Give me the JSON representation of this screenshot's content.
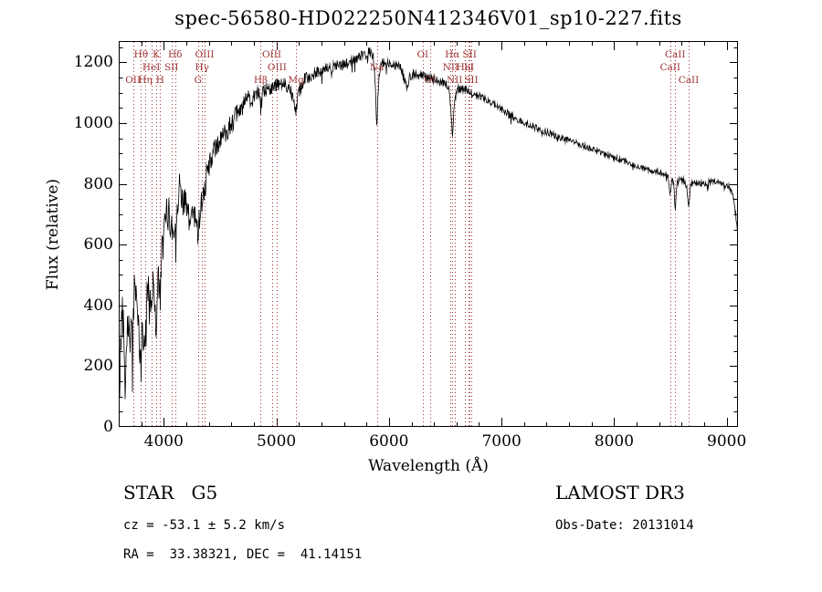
{
  "title": "spec-56580-HD022250N412346V01_sp10-227.fits",
  "footer": {
    "object_type": "STAR   G5",
    "survey": "LAMOST DR3",
    "cz": "cz = -53.1 ± 5.2 km/s",
    "obs_date": "Obs-Date: 20131014",
    "coords": "RA =  33.38321, DEC =  41.14151"
  },
  "chart_data": {
    "type": "line",
    "title": "spec-56580-HD022250N412346V01_sp10-227.fits",
    "xlabel": "Wavelength (Å)",
    "ylabel": "Flux (relative)",
    "xlim": [
      3600,
      9100
    ],
    "ylim": [
      0,
      1270
    ],
    "x_major_ticks": [
      4000,
      5000,
      6000,
      7000,
      8000,
      9000
    ],
    "x_minor_step": 200,
    "y_major_ticks": [
      0,
      200,
      400,
      600,
      800,
      1000,
      1200
    ],
    "y_minor_step": 50,
    "grid": false,
    "legend": "none",
    "spectrum_color": "#000000",
    "marker_line_color": "#a03434",
    "noise_seed": 42,
    "series": [
      {
        "name": "flux_envelope",
        "points": [
          [
            3600,
            60
          ],
          [
            3615,
            220
          ],
          [
            3630,
            420
          ],
          [
            3645,
            300
          ],
          [
            3660,
            180
          ],
          [
            3675,
            360
          ],
          [
            3690,
            330
          ],
          [
            3705,
            300
          ],
          [
            3720,
            270
          ],
          [
            3735,
            430
          ],
          [
            3750,
            470
          ],
          [
            3765,
            420
          ],
          [
            3780,
            260
          ],
          [
            3798,
            200
          ],
          [
            3812,
            320
          ],
          [
            3825,
            280
          ],
          [
            3840,
            300
          ],
          [
            3855,
            450
          ],
          [
            3870,
            480
          ],
          [
            3890,
            400
          ],
          [
            3910,
            480
          ],
          [
            3933,
            320
          ],
          [
            3950,
            500
          ],
          [
            3968,
            420
          ],
          [
            3985,
            580
          ],
          [
            4000,
            630
          ],
          [
            4020,
            690
          ],
          [
            4040,
            710
          ],
          [
            4060,
            670
          ],
          [
            4080,
            650
          ],
          [
            4101,
            640
          ],
          [
            4115,
            730
          ],
          [
            4130,
            770
          ],
          [
            4150,
            790
          ],
          [
            4165,
            760
          ],
          [
            4180,
            740
          ],
          [
            4200,
            720
          ],
          [
            4215,
            700
          ],
          [
            4227,
            660
          ],
          [
            4240,
            700
          ],
          [
            4260,
            710
          ],
          [
            4280,
            680
          ],
          [
            4304,
            650
          ],
          [
            4320,
            700
          ],
          [
            4340,
            750
          ],
          [
            4363,
            790
          ],
          [
            4385,
            830
          ],
          [
            4410,
            870
          ],
          [
            4440,
            900
          ],
          [
            4470,
            920
          ],
          [
            4500,
            945
          ],
          [
            4540,
            965
          ],
          [
            4580,
            990
          ],
          [
            4620,
            1010
          ],
          [
            4660,
            1035
          ],
          [
            4700,
            1060
          ],
          [
            4740,
            1075
          ],
          [
            4780,
            1090
          ],
          [
            4820,
            1100
          ],
          [
            4845,
            1090
          ],
          [
            4861,
            1045
          ],
          [
            4880,
            1095
          ],
          [
            4910,
            1110
          ],
          [
            4950,
            1120
          ],
          [
            4990,
            1120
          ],
          [
            5030,
            1125
          ],
          [
            5070,
            1130
          ],
          [
            5110,
            1120
          ],
          [
            5150,
            1090
          ],
          [
            5175,
            1045
          ],
          [
            5200,
            1105
          ],
          [
            5240,
            1140
          ],
          [
            5280,
            1150
          ],
          [
            5330,
            1160
          ],
          [
            5380,
            1170
          ],
          [
            5430,
            1175
          ],
          [
            5480,
            1180
          ],
          [
            5530,
            1185
          ],
          [
            5580,
            1190
          ],
          [
            5630,
            1195
          ],
          [
            5680,
            1205
          ],
          [
            5730,
            1215
          ],
          [
            5780,
            1225
          ],
          [
            5830,
            1235
          ],
          [
            5860,
            1215
          ],
          [
            5880,
            1120
          ],
          [
            5892,
            985
          ],
          [
            5905,
            1120
          ],
          [
            5925,
            1190
          ],
          [
            5960,
            1200
          ],
          [
            6000,
            1195
          ],
          [
            6050,
            1190
          ],
          [
            6100,
            1185
          ],
          [
            6140,
            1140
          ],
          [
            6160,
            1110
          ],
          [
            6180,
            1150
          ],
          [
            6220,
            1165
          ],
          [
            6260,
            1160
          ],
          [
            6300,
            1155
          ],
          [
            6340,
            1150
          ],
          [
            6380,
            1145
          ],
          [
            6420,
            1140
          ],
          [
            6460,
            1135
          ],
          [
            6500,
            1130
          ],
          [
            6530,
            1115
          ],
          [
            6550,
            1050
          ],
          [
            6563,
            955
          ],
          [
            6580,
            1060
          ],
          [
            6600,
            1110
          ],
          [
            6640,
            1115
          ],
          [
            6680,
            1110
          ],
          [
            6720,
            1105
          ],
          [
            6760,
            1095
          ],
          [
            6800,
            1090
          ],
          [
            6850,
            1080
          ],
          [
            6900,
            1070
          ],
          [
            6950,
            1055
          ],
          [
            7000,
            1045
          ],
          [
            7060,
            1030
          ],
          [
            7120,
            1015
          ],
          [
            7180,
            1005
          ],
          [
            7240,
            995
          ],
          [
            7300,
            985
          ],
          [
            7360,
            975
          ],
          [
            7420,
            968
          ],
          [
            7480,
            958
          ],
          [
            7540,
            950
          ],
          [
            7600,
            942
          ],
          [
            7660,
            935
          ],
          [
            7720,
            927
          ],
          [
            7780,
            918
          ],
          [
            7840,
            910
          ],
          [
            7900,
            900
          ],
          [
            7960,
            892
          ],
          [
            8020,
            884
          ],
          [
            8080,
            875
          ],
          [
            8140,
            868
          ],
          [
            8200,
            858
          ],
          [
            8260,
            852
          ],
          [
            8320,
            846
          ],
          [
            8380,
            840
          ],
          [
            8440,
            833
          ],
          [
            8480,
            822
          ],
          [
            8498,
            762
          ],
          [
            8515,
            818
          ],
          [
            8532,
            790
          ],
          [
            8542,
            705
          ],
          [
            8558,
            808
          ],
          [
            8590,
            815
          ],
          [
            8620,
            810
          ],
          [
            8645,
            790
          ],
          [
            8662,
            722
          ],
          [
            8680,
            802
          ],
          [
            8720,
            803
          ],
          [
            8760,
            800
          ],
          [
            8800,
            800
          ],
          [
            8845,
            806
          ],
          [
            8890,
            810
          ],
          [
            8935,
            802
          ],
          [
            8980,
            796
          ],
          [
            9020,
            790
          ],
          [
            9055,
            770
          ],
          [
            9080,
            700
          ],
          [
            9100,
            620
          ]
        ]
      }
    ],
    "noise_profile": [
      [
        3600,
        75
      ],
      [
        3900,
        70
      ],
      [
        4100,
        60
      ],
      [
        4300,
        50
      ],
      [
        4500,
        38
      ],
      [
        4700,
        30
      ],
      [
        4900,
        26
      ],
      [
        5100,
        24
      ],
      [
        5400,
        20
      ],
      [
        5700,
        18
      ],
      [
        6000,
        16
      ],
      [
        6400,
        14
      ],
      [
        6800,
        12
      ],
      [
        7200,
        11
      ],
      [
        7600,
        10
      ],
      [
        8000,
        9
      ],
      [
        8400,
        9
      ],
      [
        8800,
        9
      ],
      [
        9100,
        10
      ]
    ],
    "spectral_lines": [
      {
        "wavelength": 3727,
        "label": "OII",
        "row": 3
      },
      {
        "wavelength": 3798,
        "label": "Hθ",
        "row": 1
      },
      {
        "wavelength": 3835,
        "label": "Hη",
        "row": 3
      },
      {
        "wavelength": 3889,
        "label": "HeI",
        "row": 2
      },
      {
        "wavelength": 3933,
        "label": "K",
        "row": 1
      },
      {
        "wavelength": 3968,
        "label": "H",
        "row": 3
      },
      {
        "wavelength": 4068,
        "label": "SII",
        "row": 2
      },
      {
        "wavelength": 4101,
        "label": "Hδ",
        "row": 1
      },
      {
        "wavelength": 4304,
        "label": "G",
        "row": 3
      },
      {
        "wavelength": 4340,
        "label": "Hγ",
        "row": 2
      },
      {
        "wavelength": 4363,
        "label": "OIII",
        "row": 1
      },
      {
        "wavelength": 4861,
        "label": "Hβ",
        "row": 3
      },
      {
        "wavelength": 4959,
        "label": "OIII",
        "row": 1
      },
      {
        "wavelength": 5007,
        "label": "OIII",
        "row": 2
      },
      {
        "wavelength": 5175,
        "label": "Mg",
        "row": 3
      },
      {
        "wavelength": 5892,
        "label": "Na",
        "row": 2
      },
      {
        "wavelength": 6300,
        "label": "OI",
        "row": 1
      },
      {
        "wavelength": 6364,
        "label": "OI",
        "row": 3
      },
      {
        "wavelength": 6548,
        "label": "NII",
        "row": 2
      },
      {
        "wavelength": 6563,
        "label": "Hα",
        "row": 1
      },
      {
        "wavelength": 6583,
        "label": "NII",
        "row": 3
      },
      {
        "wavelength": 6678,
        "label": "HeI",
        "row": 2
      },
      {
        "wavelength": 6708,
        "label": "Li",
        "row": 2
      },
      {
        "wavelength": 6716,
        "label": "SII",
        "row": 1
      },
      {
        "wavelength": 6731,
        "label": "SII",
        "row": 3
      },
      {
        "wavelength": 8498,
        "label": "CaII",
        "row": 2
      },
      {
        "wavelength": 8542,
        "label": "CaII",
        "row": 1
      },
      {
        "wavelength": 8662,
        "label": "CaII",
        "row": 3
      }
    ]
  }
}
